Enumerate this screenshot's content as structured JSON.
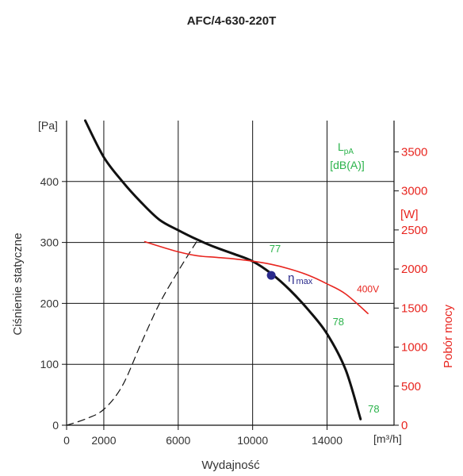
{
  "chart_data": {
    "type": "line",
    "title": "AFC/4-630-220T",
    "xlabel": "Wydajność",
    "x_unit": "[m³/h]",
    "ylabel_left": "Ciśnienie statyczne",
    "y_unit_left": "[Pa]",
    "ylabel_right": "Pobór mocy",
    "y_unit_right": "[W]",
    "xlim": [
      0,
      17600
    ],
    "ylim_left": [
      0,
      500
    ],
    "ylim_right": [
      0,
      3900
    ],
    "x_ticks": [
      "0",
      "2000",
      "6000",
      "10000",
      "14000"
    ],
    "x_tick_values": [
      0,
      2000,
      6000,
      10000,
      14000
    ],
    "y_ticks_left": [
      "0",
      "100",
      "200",
      "300",
      "400"
    ],
    "y_tick_values_left": [
      0,
      100,
      200,
      300,
      400
    ],
    "y_ticks_right": [
      "0",
      "500",
      "1000",
      "1500",
      "2000",
      "2500",
      "3000",
      "3500"
    ],
    "y_tick_values_right": [
      0,
      500,
      1000,
      1500,
      2000,
      2500,
      3000,
      3500
    ],
    "grid": true,
    "grid_x_lines": [
      0,
      2000,
      6000,
      10000,
      14000
    ],
    "grid_y_lines": [
      100,
      200,
      300,
      400
    ],
    "colors": {
      "pressure": "#111111",
      "power": "#e8251f",
      "sound": "#2bb34b",
      "eta": "#2a2a8c",
      "grid": "#111111"
    },
    "series": [
      {
        "axis": "left",
        "style": "solid",
        "points": [
          [
            1000,
            500
          ],
          [
            2000,
            440
          ],
          [
            3000,
            400
          ],
          [
            4000,
            366
          ],
          [
            5000,
            337
          ],
          [
            6000,
            320
          ],
          [
            7000,
            305
          ],
          [
            8000,
            292
          ],
          [
            9000,
            281
          ],
          [
            10000,
            269
          ],
          [
            11000,
            249
          ],
          [
            12000,
            222
          ],
          [
            13000,
            189
          ],
          [
            14000,
            150
          ],
          [
            15000,
            91
          ],
          [
            15800,
            10
          ]
        ]
      },
      {
        "axis": "left",
        "style": "dashed",
        "points": [
          [
            0,
            0
          ],
          [
            1000,
            10
          ],
          [
            2000,
            26
          ],
          [
            3000,
            65
          ],
          [
            4000,
            134
          ],
          [
            5000,
            200
          ],
          [
            6000,
            253
          ],
          [
            7000,
            302
          ]
        ]
      },
      {
        "name": "400V",
        "axis": "right",
        "style": "solid",
        "points": [
          [
            4200,
            2350
          ],
          [
            5000,
            2290
          ],
          [
            6000,
            2220
          ],
          [
            7000,
            2170
          ],
          [
            8000,
            2150
          ],
          [
            9000,
            2130
          ],
          [
            10000,
            2100
          ],
          [
            11000,
            2060
          ],
          [
            12000,
            2000
          ],
          [
            13000,
            1920
          ],
          [
            14000,
            1810
          ],
          [
            15000,
            1680
          ],
          [
            16200,
            1430
          ]
        ]
      }
    ],
    "eta_max_point": [
      11000,
      246
    ],
    "eta_label": "η",
    "eta_sub": "max",
    "sound_title": "L",
    "sound_sub": "pA",
    "sound_unit": "[dB(A)]",
    "sound_labels": [
      {
        "text": "77",
        "x": 10900,
        "y": 284
      },
      {
        "text": "78",
        "x": 14300,
        "y": 164
      },
      {
        "text": "78",
        "x": 16200,
        "y": 21
      }
    ],
    "power_label": {
      "text": "400V",
      "x": 15600,
      "y_right": 1700
    }
  }
}
